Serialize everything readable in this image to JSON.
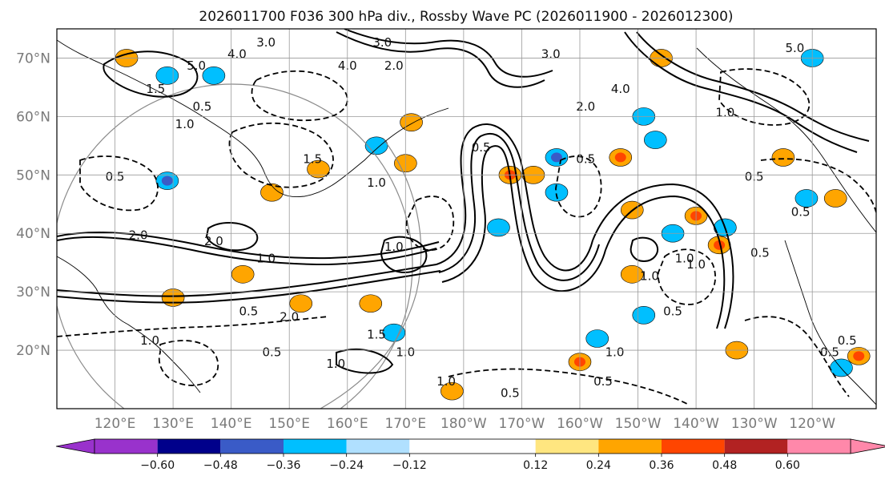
{
  "chart_data": {
    "type": "heatmap",
    "title": "2026011700 F036 300 hPa div., Rossby Wave PC (2026011900 - 2026012300)",
    "projection": "lat-lon",
    "lon_range": [
      110,
      251
    ],
    "lat_range": [
      10,
      75
    ],
    "lat_ticks": [
      {
        "value": 70,
        "label": "70°N"
      },
      {
        "value": 60,
        "label": "60°N"
      },
      {
        "value": 50,
        "label": "50°N"
      },
      {
        "value": 40,
        "label": "40°N"
      },
      {
        "value": 30,
        "label": "30°N"
      },
      {
        "value": 20,
        "label": "20°N"
      }
    ],
    "lon_ticks": [
      {
        "value": 120,
        "label": "120°E"
      },
      {
        "value": 130,
        "label": "130°E"
      },
      {
        "value": 140,
        "label": "140°E"
      },
      {
        "value": 150,
        "label": "150°E"
      },
      {
        "value": 160,
        "label": "160°E"
      },
      {
        "value": 170,
        "label": "170°E"
      },
      {
        "value": 180,
        "label": "180°W"
      },
      {
        "value": 190,
        "label": "170°W"
      },
      {
        "value": 200,
        "label": "160°W"
      },
      {
        "value": 210,
        "label": "150°W"
      },
      {
        "value": 220,
        "label": "140°W"
      },
      {
        "value": 230,
        "label": "130°W"
      },
      {
        "value": 240,
        "label": "120°W"
      }
    ],
    "colorbar": {
      "bounds": [
        -0.72,
        -0.6,
        -0.48,
        -0.36,
        -0.24,
        -0.12,
        0.12,
        0.24,
        0.36,
        0.48,
        0.6,
        0.72
      ],
      "colors": [
        "#9932cc",
        "#00008b",
        "#3a5bc7",
        "#00bfff",
        "#b0e0ff",
        "#ffffff",
        "#ffe680",
        "#ffa500",
        "#ff4500",
        "#b22222",
        "#ff88aa"
      ],
      "extend_min_color": "#9932cc",
      "extend_max_color": "#ff88aa",
      "tick_labels": [
        {
          "value": -0.6,
          "label": "−0.60"
        },
        {
          "value": -0.48,
          "label": "−0.48"
        },
        {
          "value": -0.36,
          "label": "−0.36"
        },
        {
          "value": -0.24,
          "label": "−0.24"
        },
        {
          "value": -0.12,
          "label": "−0.12"
        },
        {
          "value": 0.12,
          "label": "0.12"
        },
        {
          "value": 0.24,
          "label": "0.24"
        },
        {
          "value": 0.36,
          "label": "0.36"
        },
        {
          "value": 0.48,
          "label": "0.48"
        },
        {
          "value": 0.6,
          "label": "0.60"
        }
      ]
    },
    "divergence_patches": [
      {
        "lon": 122,
        "lat": 70,
        "value": 0.3
      },
      {
        "lon": 129,
        "lat": 67,
        "value": -0.3
      },
      {
        "lon": 137,
        "lat": 67,
        "value": -0.3
      },
      {
        "lon": 129,
        "lat": 49,
        "value": -0.4
      },
      {
        "lon": 147,
        "lat": 47,
        "value": 0.3
      },
      {
        "lon": 155,
        "lat": 51,
        "value": 0.3
      },
      {
        "lon": 165,
        "lat": 55,
        "value": -0.3
      },
      {
        "lon": 170,
        "lat": 52,
        "value": 0.3
      },
      {
        "lon": 171,
        "lat": 59,
        "value": 0.3
      },
      {
        "lon": 186,
        "lat": 41,
        "value": -0.3
      },
      {
        "lon": 188,
        "lat": 50,
        "value": 0.4
      },
      {
        "lon": 192,
        "lat": 50,
        "value": 0.3
      },
      {
        "lon": 196,
        "lat": 53,
        "value": -0.4
      },
      {
        "lon": 196,
        "lat": 47,
        "value": -0.3
      },
      {
        "lon": 207,
        "lat": 53,
        "value": 0.4
      },
      {
        "lon": 209,
        "lat": 44,
        "value": 0.3
      },
      {
        "lon": 209,
        "lat": 33,
        "value": 0.3
      },
      {
        "lon": 211,
        "lat": 60,
        "value": -0.3
      },
      {
        "lon": 213,
        "lat": 56,
        "value": -0.3
      },
      {
        "lon": 220,
        "lat": 43,
        "value": 0.4
      },
      {
        "lon": 224,
        "lat": 38,
        "value": 0.4
      },
      {
        "lon": 225,
        "lat": 41,
        "value": -0.3
      },
      {
        "lon": 235,
        "lat": 53,
        "value": 0.3
      },
      {
        "lon": 239,
        "lat": 46,
        "value": -0.3
      },
      {
        "lon": 244,
        "lat": 46,
        "value": 0.3
      },
      {
        "lon": 142,
        "lat": 33,
        "value": 0.3
      },
      {
        "lon": 152,
        "lat": 28,
        "value": 0.3
      },
      {
        "lon": 164,
        "lat": 28,
        "value": 0.3
      },
      {
        "lon": 168,
        "lat": 23,
        "value": -0.3
      },
      {
        "lon": 130,
        "lat": 29,
        "value": 0.3
      },
      {
        "lon": 200,
        "lat": 18,
        "value": 0.4
      },
      {
        "lon": 203,
        "lat": 22,
        "value": -0.3
      },
      {
        "lon": 211,
        "lat": 26,
        "value": -0.3
      },
      {
        "lon": 227,
        "lat": 20,
        "value": 0.3
      },
      {
        "lon": 248,
        "lat": 19,
        "value": 0.4
      },
      {
        "lon": 245,
        "lat": 17,
        "value": -0.3
      },
      {
        "lon": 240,
        "lat": 70,
        "value": -0.3
      },
      {
        "lon": 214,
        "lat": 70,
        "value": 0.3
      },
      {
        "lon": 216,
        "lat": 40,
        "value": -0.3
      },
      {
        "lon": 178,
        "lat": 13,
        "value": 0.3
      }
    ],
    "contour_labels": [
      {
        "lon": 146,
        "lat": 72,
        "text": "3.0"
      },
      {
        "lon": 141,
        "lat": 70,
        "text": "4.0"
      },
      {
        "lon": 134,
        "lat": 68,
        "text": "5.0"
      },
      {
        "lon": 160,
        "lat": 68,
        "text": "4.0"
      },
      {
        "lon": 168,
        "lat": 68,
        "text": "2.0"
      },
      {
        "lon": 127,
        "lat": 64,
        "text": "1.5"
      },
      {
        "lon": 135,
        "lat": 61,
        "text": "0.5"
      },
      {
        "lon": 132,
        "lat": 58,
        "text": "1.0"
      },
      {
        "lon": 154,
        "lat": 52,
        "text": "1.5"
      },
      {
        "lon": 183,
        "lat": 54,
        "text": "0.5"
      },
      {
        "lon": 166,
        "lat": 72,
        "text": "3.0"
      },
      {
        "lon": 195,
        "lat": 70,
        "text": "3.0"
      },
      {
        "lon": 207,
        "lat": 64,
        "text": "4.0"
      },
      {
        "lon": 201,
        "lat": 61,
        "text": "2.0"
      },
      {
        "lon": 225,
        "lat": 60,
        "text": "1.0"
      },
      {
        "lon": 237,
        "lat": 71,
        "text": "5.0"
      },
      {
        "lon": 230,
        "lat": 49,
        "text": "0.5"
      },
      {
        "lon": 231,
        "lat": 36,
        "text": "0.5"
      },
      {
        "lon": 212,
        "lat": 32,
        "text": "1.0"
      },
      {
        "lon": 220,
        "lat": 34,
        "text": "1.0"
      },
      {
        "lon": 216,
        "lat": 26,
        "text": "0.5"
      },
      {
        "lon": 206,
        "lat": 19,
        "text": "1.0"
      },
      {
        "lon": 204,
        "lat": 14,
        "text": "0.5"
      },
      {
        "lon": 188,
        "lat": 12,
        "text": "0.5"
      },
      {
        "lon": 177,
        "lat": 14,
        "text": "1.0"
      },
      {
        "lon": 150,
        "lat": 25,
        "text": "2.0"
      },
      {
        "lon": 165,
        "lat": 22,
        "text": "1.5"
      },
      {
        "lon": 170,
        "lat": 19,
        "text": "1.0"
      },
      {
        "lon": 158,
        "lat": 17,
        "text": "1.0"
      },
      {
        "lon": 143,
        "lat": 26,
        "text": "0.5"
      },
      {
        "lon": 126,
        "lat": 21,
        "text": "1.0"
      },
      {
        "lon": 147,
        "lat": 19,
        "text": "0.5"
      },
      {
        "lon": 137,
        "lat": 38,
        "text": "2.0"
      },
      {
        "lon": 168,
        "lat": 37,
        "text": "1.0"
      },
      {
        "lon": 124,
        "lat": 39,
        "text": "2.0"
      },
      {
        "lon": 146,
        "lat": 35,
        "text": "1.0"
      },
      {
        "lon": 120,
        "lat": 49,
        "text": "0.5"
      },
      {
        "lon": 165,
        "lat": 48,
        "text": "1.0"
      },
      {
        "lon": 201,
        "lat": 52,
        "text": "0.5"
      },
      {
        "lon": 218,
        "lat": 35,
        "text": "1.0"
      },
      {
        "lon": 238,
        "lat": 43,
        "text": "0.5"
      },
      {
        "lon": 246,
        "lat": 21,
        "text": "0.5"
      },
      {
        "lon": 243,
        "lat": 19,
        "text": "0.5"
      }
    ]
  }
}
